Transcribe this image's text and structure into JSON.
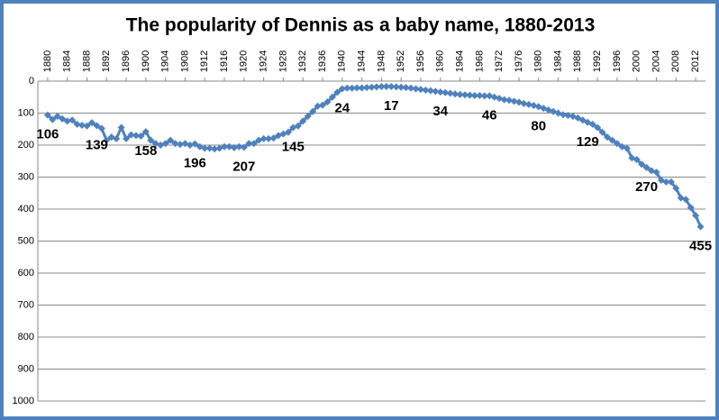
{
  "chart_data": {
    "type": "line",
    "title": "The popularity of Dennis as a baby name, 1880-2013",
    "x": [
      1880,
      1881,
      1882,
      1883,
      1884,
      1885,
      1886,
      1887,
      1888,
      1889,
      1890,
      1891,
      1892,
      1893,
      1894,
      1895,
      1896,
      1897,
      1898,
      1899,
      1900,
      1901,
      1902,
      1903,
      1904,
      1905,
      1906,
      1907,
      1908,
      1909,
      1910,
      1911,
      1912,
      1913,
      1914,
      1915,
      1916,
      1917,
      1918,
      1919,
      1920,
      1921,
      1922,
      1923,
      1924,
      1925,
      1926,
      1927,
      1928,
      1929,
      1930,
      1931,
      1932,
      1933,
      1934,
      1935,
      1936,
      1937,
      1938,
      1939,
      1940,
      1941,
      1942,
      1943,
      1944,
      1945,
      1946,
      1947,
      1948,
      1949,
      1950,
      1951,
      1952,
      1953,
      1954,
      1955,
      1956,
      1957,
      1958,
      1959,
      1960,
      1961,
      1962,
      1963,
      1964,
      1965,
      1966,
      1967,
      1968,
      1969,
      1970,
      1971,
      1972,
      1973,
      1974,
      1975,
      1976,
      1977,
      1978,
      1979,
      1980,
      1981,
      1982,
      1983,
      1984,
      1985,
      1986,
      1987,
      1988,
      1989,
      1990,
      1991,
      1992,
      1993,
      1994,
      1995,
      1996,
      1997,
      1998,
      1999,
      2000,
      2001,
      2002,
      2003,
      2004,
      2005,
      2006,
      2007,
      2008,
      2009,
      2010,
      2011,
      2012,
      2013
    ],
    "series": [
      {
        "color": "#4f81bd",
        "values": [
          106,
          120,
          110,
          118,
          125,
          122,
          135,
          138,
          140,
          130,
          139,
          148,
          185,
          175,
          180,
          145,
          180,
          168,
          170,
          172,
          158,
          185,
          195,
          200,
          195,
          185,
          195,
          198,
          195,
          200,
          196,
          205,
          210,
          210,
          212,
          210,
          205,
          205,
          208,
          205,
          207,
          195,
          195,
          185,
          180,
          180,
          178,
          170,
          165,
          160,
          145,
          140,
          125,
          110,
          95,
          78,
          75,
          65,
          50,
          35,
          24,
          22,
          22,
          21,
          21,
          20,
          19,
          18,
          17,
          17,
          17,
          18,
          19,
          20,
          22,
          24,
          26,
          28,
          30,
          32,
          34,
          36,
          38,
          40,
          42,
          43,
          44,
          45,
          45,
          46,
          46,
          50,
          54,
          58,
          60,
          63,
          66,
          70,
          73,
          76,
          80,
          85,
          90,
          95,
          100,
          105,
          107,
          110,
          115,
          122,
          129,
          135,
          145,
          160,
          175,
          185,
          195,
          205,
          210,
          240,
          245,
          260,
          270,
          280,
          285,
          310,
          315,
          315,
          335,
          365,
          370,
          395,
          420,
          455
        ]
      }
    ],
    "value_labels": [
      "106",
      null,
      null,
      null,
      null,
      null,
      null,
      null,
      null,
      null,
      "139",
      null,
      null,
      null,
      null,
      null,
      null,
      null,
      null,
      null,
      "158",
      null,
      null,
      null,
      null,
      null,
      null,
      null,
      null,
      null,
      "196",
      null,
      null,
      null,
      null,
      null,
      null,
      null,
      null,
      null,
      "207",
      null,
      null,
      null,
      null,
      null,
      null,
      null,
      null,
      null,
      "145",
      null,
      null,
      null,
      null,
      null,
      null,
      null,
      null,
      null,
      "24",
      null,
      null,
      null,
      null,
      null,
      null,
      null,
      null,
      null,
      "17",
      null,
      null,
      null,
      null,
      null,
      null,
      null,
      null,
      null,
      "34",
      null,
      null,
      null,
      null,
      null,
      null,
      null,
      null,
      null,
      "46",
      null,
      null,
      null,
      null,
      null,
      null,
      null,
      null,
      null,
      "80",
      null,
      null,
      null,
      null,
      null,
      null,
      null,
      null,
      null,
      "129",
      null,
      null,
      null,
      null,
      null,
      null,
      null,
      null,
      null,
      null,
      null,
      "270",
      null,
      null,
      null,
      null,
      null,
      null,
      null,
      null,
      null,
      null,
      "455"
    ],
    "xlim": [
      1878,
      2014
    ],
    "xticks": [
      1880,
      1884,
      1888,
      1892,
      1896,
      1900,
      1904,
      1908,
      1912,
      1916,
      1920,
      1924,
      1928,
      1932,
      1936,
      1940,
      1944,
      1948,
      1952,
      1956,
      1960,
      1964,
      1968,
      1972,
      1976,
      1980,
      1984,
      1988,
      1992,
      1996,
      2000,
      2004,
      2008,
      2012
    ],
    "ylim": [
      0,
      1000
    ],
    "y_reversed": true,
    "yticks": [
      0,
      100,
      200,
      300,
      400,
      500,
      600,
      700,
      800,
      900,
      1000
    ],
    "grid": true
  }
}
